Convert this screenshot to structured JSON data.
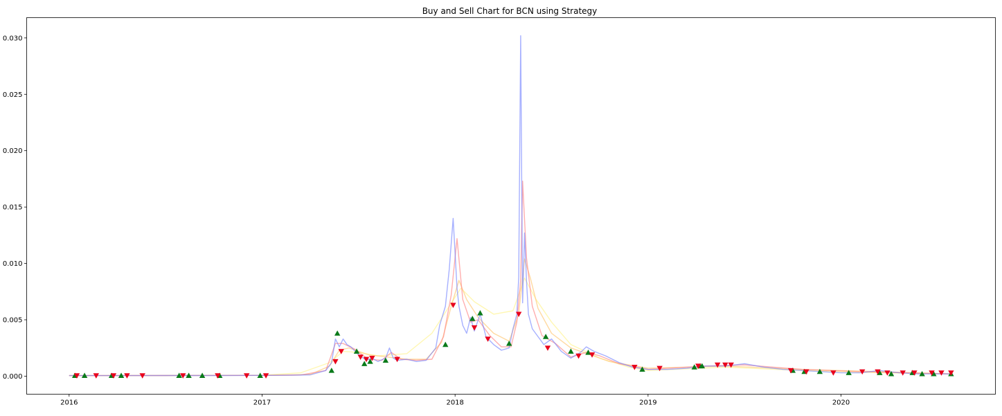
{
  "chart_data": {
    "type": "line",
    "title": "Buy and Sell Chart for BCN using Strategy",
    "xlabel": "",
    "ylabel": "",
    "xlim": [
      2015.78,
      2020.8
    ],
    "ylim": [
      -0.0016,
      0.0318
    ],
    "grid": false,
    "x_ticks": [
      "2016",
      "2017",
      "2018",
      "2019",
      "2020"
    ],
    "y_ticks": [
      "0.000",
      "0.005",
      "0.010",
      "0.015",
      "0.020",
      "0.025",
      "0.030"
    ],
    "colors": {
      "price": "#6b7cff",
      "short_ma": "#ff8c8c",
      "mid_ma": "#ffcc80",
      "long_ma": "#fff5a0",
      "buy_marker": "#0a7a1a",
      "sell_marker": "#e8001c"
    },
    "series": [
      {
        "key": "price",
        "x": [
          2016.0,
          2016.25,
          2016.5,
          2016.75,
          2017.0,
          2017.15,
          2017.25,
          2017.33,
          2017.36,
          2017.38,
          2017.4,
          2017.42,
          2017.44,
          2017.46,
          2017.5,
          2017.54,
          2017.57,
          2017.6,
          2017.64,
          2017.66,
          2017.68,
          2017.7,
          2017.75,
          2017.8,
          2017.85,
          2017.9,
          2017.92,
          2017.95,
          2017.97,
          2017.99,
          2018.01,
          2018.02,
          2018.04,
          2018.06,
          2018.08,
          2018.1,
          2018.13,
          2018.16,
          2018.2,
          2018.24,
          2018.28,
          2018.3,
          2018.32,
          2018.33,
          2018.34,
          2018.35,
          2018.36,
          2018.37,
          2018.38,
          2018.4,
          2018.43,
          2018.46,
          2018.5,
          2018.55,
          2018.6,
          2018.65,
          2018.68,
          2018.72,
          2018.78,
          2018.85,
          2018.92,
          2019.0,
          2019.1,
          2019.2,
          2019.3,
          2019.35,
          2019.4,
          2019.45,
          2019.5,
          2019.6,
          2019.7,
          2019.8,
          2019.9,
          2020.0,
          2020.1,
          2020.2,
          2020.3,
          2020.4,
          2020.5,
          2020.57
        ],
        "values": [
          5e-05,
          5e-05,
          6e-05,
          6e-05,
          7e-05,
          8e-05,
          0.00012,
          0.0005,
          0.0012,
          0.0033,
          0.0026,
          0.0033,
          0.0028,
          0.0026,
          0.0019,
          0.0014,
          0.0016,
          0.0013,
          0.0016,
          0.0025,
          0.0016,
          0.0014,
          0.0015,
          0.0013,
          0.0014,
          0.0025,
          0.0045,
          0.0062,
          0.0095,
          0.014,
          0.0078,
          0.0062,
          0.0045,
          0.0038,
          0.0052,
          0.004,
          0.0055,
          0.0035,
          0.0028,
          0.0023,
          0.0025,
          0.0042,
          0.0055,
          0.0088,
          0.0302,
          0.0065,
          0.0127,
          0.0085,
          0.0055,
          0.0042,
          0.0035,
          0.0028,
          0.0033,
          0.0022,
          0.0016,
          0.0021,
          0.0026,
          0.0022,
          0.0018,
          0.0012,
          0.0008,
          0.0006,
          0.0006,
          0.0007,
          0.0009,
          0.0009,
          0.0009,
          0.001,
          0.0011,
          0.0008,
          0.0006,
          0.0005,
          0.0004,
          0.0003,
          0.0003,
          0.0005,
          0.0003,
          0.0002,
          0.0002,
          0.0002
        ]
      },
      {
        "key": "short_ma",
        "x": [
          2016.0,
          2016.5,
          2017.0,
          2017.2,
          2017.33,
          2017.38,
          2017.42,
          2017.48,
          2017.55,
          2017.62,
          2017.67,
          2017.72,
          2017.8,
          2017.88,
          2017.94,
          2017.98,
          2018.01,
          2018.04,
          2018.08,
          2018.12,
          2018.18,
          2018.24,
          2018.29,
          2018.32,
          2018.34,
          2018.35,
          2018.37,
          2018.4,
          2018.45,
          2018.52,
          2018.6,
          2018.68,
          2018.75,
          2018.85,
          2019.0,
          2019.3,
          2019.5,
          2019.8,
          2020.1,
          2020.57
        ],
        "values": [
          5e-05,
          6e-05,
          7e-05,
          0.0001,
          0.0005,
          0.0029,
          0.0029,
          0.0024,
          0.0015,
          0.0014,
          0.0021,
          0.0015,
          0.0014,
          0.0015,
          0.0035,
          0.0072,
          0.0122,
          0.0068,
          0.0048,
          0.005,
          0.0036,
          0.0026,
          0.0026,
          0.0048,
          0.0085,
          0.0173,
          0.0105,
          0.0062,
          0.0036,
          0.0029,
          0.0017,
          0.0021,
          0.0018,
          0.0011,
          0.0006,
          0.0009,
          0.001,
          0.0006,
          0.0004,
          0.0002
        ]
      },
      {
        "key": "mid_ma",
        "x": [
          2016.0,
          2016.5,
          2017.0,
          2017.25,
          2017.35,
          2017.4,
          2017.45,
          2017.55,
          2017.65,
          2017.75,
          2017.85,
          2017.93,
          2017.98,
          2018.02,
          2018.06,
          2018.12,
          2018.2,
          2018.28,
          2018.33,
          2018.36,
          2018.39,
          2018.43,
          2018.5,
          2018.6,
          2018.7,
          2018.8,
          2019.0,
          2019.4,
          2019.8,
          2020.2,
          2020.57
        ],
        "values": [
          5e-05,
          6e-05,
          7e-05,
          0.00015,
          0.0009,
          0.0023,
          0.0025,
          0.0019,
          0.0017,
          0.0015,
          0.0015,
          0.003,
          0.0062,
          0.0085,
          0.0068,
          0.0052,
          0.0038,
          0.0031,
          0.0055,
          0.0104,
          0.0087,
          0.006,
          0.0038,
          0.0025,
          0.0019,
          0.0013,
          0.0007,
          0.0009,
          0.0006,
          0.0004,
          0.0002
        ]
      },
      {
        "key": "long_ma",
        "x": [
          2016.0,
          2016.5,
          2017.0,
          2017.2,
          2017.35,
          2017.42,
          2017.5,
          2017.6,
          2017.75,
          2017.88,
          2017.97,
          2018.03,
          2018.1,
          2018.2,
          2018.3,
          2018.36,
          2018.42,
          2018.5,
          2018.6,
          2018.75,
          2018.9,
          2019.0,
          2019.4,
          2019.8,
          2020.2,
          2020.57
        ],
        "values": [
          5e-05,
          6e-05,
          8e-05,
          0.0003,
          0.0012,
          0.0022,
          0.0021,
          0.0018,
          0.002,
          0.0038,
          0.0062,
          0.0078,
          0.0066,
          0.0055,
          0.0058,
          0.0087,
          0.0068,
          0.0048,
          0.0028,
          0.0016,
          0.0008,
          0.0005,
          0.0008,
          0.0005,
          0.0003,
          0.0002
        ]
      }
    ],
    "buy_signals": [
      [
        2016.03,
        5e-05
      ],
      [
        2016.08,
        5e-05
      ],
      [
        2016.22,
        5e-05
      ],
      [
        2016.27,
        5e-05
      ],
      [
        2016.57,
        5e-05
      ],
      [
        2016.62,
        5e-05
      ],
      [
        2016.69,
        5e-05
      ],
      [
        2016.78,
        5e-05
      ],
      [
        2016.99,
        5e-05
      ],
      [
        2017.36,
        0.0005
      ],
      [
        2017.39,
        0.0038
      ],
      [
        2017.49,
        0.0022
      ],
      [
        2017.53,
        0.0011
      ],
      [
        2017.56,
        0.0013
      ],
      [
        2017.64,
        0.0014
      ],
      [
        2017.95,
        0.0028
      ],
      [
        2018.09,
        0.0051
      ],
      [
        2018.13,
        0.0056
      ],
      [
        2018.28,
        0.0029
      ],
      [
        2018.47,
        0.0035
      ],
      [
        2018.6,
        0.0022
      ],
      [
        2018.69,
        0.0021
      ],
      [
        2018.97,
        0.0006
      ],
      [
        2019.24,
        0.0008
      ],
      [
        2019.27,
        0.0009
      ],
      [
        2019.28,
        0.0009
      ],
      [
        2019.75,
        0.0005
      ],
      [
        2019.81,
        0.0004
      ],
      [
        2019.89,
        0.0004
      ],
      [
        2020.04,
        0.0003
      ],
      [
        2020.2,
        0.0003
      ],
      [
        2020.26,
        0.0002
      ],
      [
        2020.37,
        0.0003
      ],
      [
        2020.42,
        0.0002
      ],
      [
        2020.48,
        0.0002
      ],
      [
        2020.57,
        0.0002
      ]
    ],
    "sell_signals": [
      [
        2016.04,
        5e-05
      ],
      [
        2016.14,
        5e-05
      ],
      [
        2016.23,
        5e-05
      ],
      [
        2016.3,
        5e-05
      ],
      [
        2016.38,
        5e-05
      ],
      [
        2016.59,
        5e-05
      ],
      [
        2016.77,
        5e-05
      ],
      [
        2016.92,
        5e-05
      ],
      [
        2017.02,
        5e-05
      ],
      [
        2017.38,
        0.0013
      ],
      [
        2017.41,
        0.0022
      ],
      [
        2017.51,
        0.0017
      ],
      [
        2017.54,
        0.0015
      ],
      [
        2017.57,
        0.0016
      ],
      [
        2017.7,
        0.0015
      ],
      [
        2017.99,
        0.0063
      ],
      [
        2018.1,
        0.0043
      ],
      [
        2018.17,
        0.0033
      ],
      [
        2018.33,
        0.0055
      ],
      [
        2018.48,
        0.0025
      ],
      [
        2018.64,
        0.0018
      ],
      [
        2018.71,
        0.0019
      ],
      [
        2018.93,
        0.0008
      ],
      [
        2019.06,
        0.0007
      ],
      [
        2019.26,
        0.0009
      ],
      [
        2019.36,
        0.001
      ],
      [
        2019.4,
        0.001
      ],
      [
        2019.43,
        0.001
      ],
      [
        2019.74,
        0.0005
      ],
      [
        2019.82,
        0.0004
      ],
      [
        2019.96,
        0.0003
      ],
      [
        2020.11,
        0.0004
      ],
      [
        2020.19,
        0.0004
      ],
      [
        2020.24,
        0.0003
      ],
      [
        2020.32,
        0.0003
      ],
      [
        2020.38,
        0.0003
      ],
      [
        2020.47,
        0.0003
      ],
      [
        2020.52,
        0.0003
      ],
      [
        2020.57,
        0.0003
      ]
    ]
  }
}
